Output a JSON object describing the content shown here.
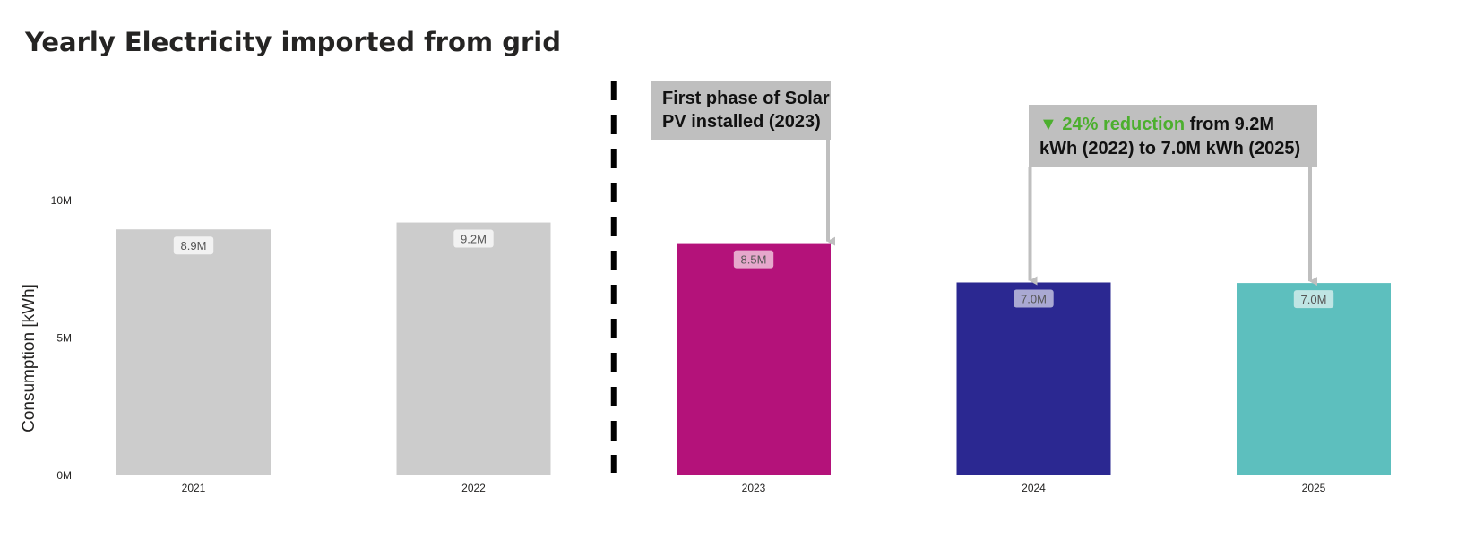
{
  "chart_data": {
    "type": "bar",
    "title": "Yearly Electricity imported from grid",
    "ylabel": "Consumption [kWh]",
    "xlabel": "",
    "ylim": [
      0,
      10000000
    ],
    "yticks": [
      {
        "value": 0,
        "label": "0M"
      },
      {
        "value": 5000000,
        "label": "5M"
      },
      {
        "value": 10000000,
        "label": "10M"
      }
    ],
    "grid": false,
    "categories": [
      "2021",
      "2022",
      "2023",
      "2024",
      "2025"
    ],
    "values": [
      8950000,
      9200000,
      8450000,
      7020000,
      7000000
    ],
    "data_labels": [
      "8.9M",
      "9.2M",
      "8.5M",
      "7.0M",
      "7.0M"
    ],
    "colors": [
      "#cccccc",
      "#cccccc",
      "#b4127a",
      "#2b2891",
      "#5dbfbe"
    ],
    "label_box_colors": [
      "#f2f2f2",
      "#f2f2f2",
      "#e6a8cc",
      "#aaa9d3",
      "#bfe5e4"
    ],
    "divider_after_category": "2022",
    "annotations": [
      {
        "lines": [
          "First phase of Solar",
          "PV installed (2023)"
        ],
        "target_categories": [
          "2023"
        ]
      },
      {
        "highlight": "▼ 24% reduction",
        "lines": [
          " from 9.2M",
          "kWh (2022) to 7.0M kWh (2025)"
        ],
        "target_categories": [
          "2024",
          "2025"
        ]
      }
    ],
    "annotation_box_color": "#bfbfbf",
    "highlight_color": "#4caf2e"
  }
}
